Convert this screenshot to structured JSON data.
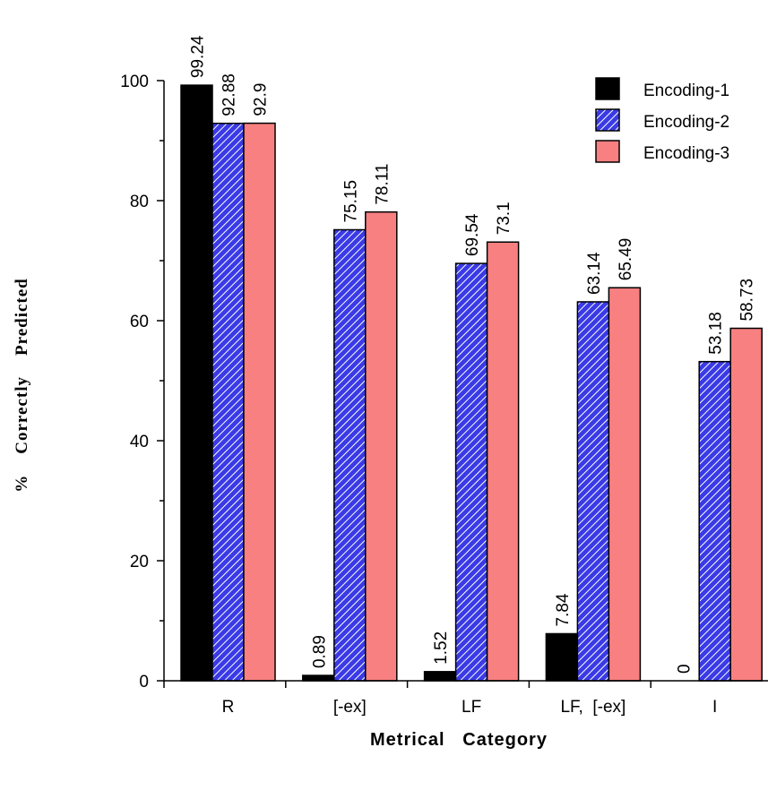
{
  "chart_data": {
    "type": "bar",
    "categories": [
      "R",
      "[-ex]",
      "LF",
      "LF,  [-ex]",
      "I"
    ],
    "series": [
      {
        "name": "Encoding-1",
        "values": [
          99.24,
          0.89,
          1.52,
          7.84,
          0
        ],
        "labels": [
          "99.24",
          "0.89",
          "1.52",
          "7.84",
          "0"
        ]
      },
      {
        "name": "Encoding-2",
        "values": [
          92.88,
          75.15,
          69.54,
          63.14,
          53.18
        ],
        "labels": [
          "92.88",
          "75.15",
          "69.54",
          "63.14",
          "53.18"
        ]
      },
      {
        "name": "Encoding-3",
        "values": [
          92.9,
          78.11,
          73.1,
          65.49,
          58.73
        ],
        "labels": [
          "92.9",
          "78.11",
          "73.1",
          "65.49",
          "58.73"
        ]
      }
    ],
    "xlabel": "Metrical   Category",
    "ylabel": "%    Correctly    Predicted",
    "ylim": [
      0,
      100
    ],
    "yticks": [
      0,
      20,
      40,
      60,
      80,
      100
    ],
    "grid": false,
    "legend": "top-right",
    "colors": {
      "Encoding-1": "#000000",
      "Encoding-2": "#3333ee",
      "Encoding-3": "#f88080"
    }
  }
}
